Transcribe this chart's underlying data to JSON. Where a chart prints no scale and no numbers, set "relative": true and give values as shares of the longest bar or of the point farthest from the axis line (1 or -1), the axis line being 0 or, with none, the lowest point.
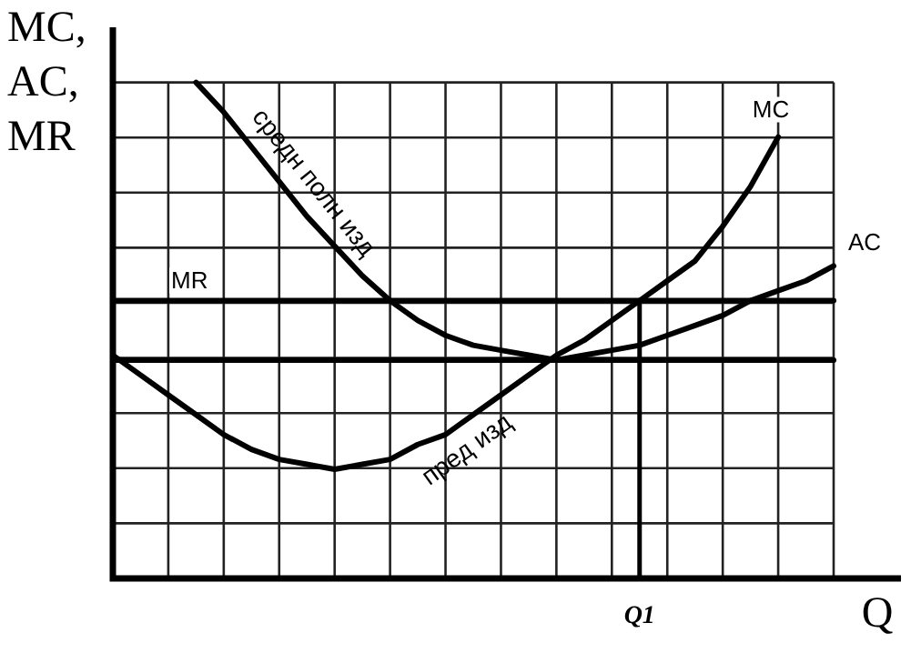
{
  "chart_data": {
    "type": "line",
    "ylabel": "MC, AC, MR",
    "xlabel": "Q",
    "relative": true,
    "grid": true,
    "marker": "none",
    "categories": [
      null,
      null,
      null,
      null,
      null,
      null,
      null,
      null,
      null,
      null,
      null,
      null,
      null,
      null,
      null,
      null,
      null,
      null,
      null,
      null,
      null,
      null,
      null,
      null,
      null,
      null,
      null
    ],
    "series": [
      {
        "name": "MC",
        "color": "#000000",
        "values": [
          0.45,
          0.41,
          0.37,
          0.33,
          0.29,
          0.26,
          0.24,
          0.23,
          0.22,
          0.23,
          0.24,
          0.27,
          0.29,
          0.33,
          0.37,
          0.41,
          0.45,
          0.48,
          0.52,
          0.56,
          0.6,
          0.64,
          0.71,
          0.79,
          0.89,
          null,
          null
        ]
      },
      {
        "name": "AC",
        "color": "#000000",
        "values": [
          null,
          null,
          null,
          1,
          0.94,
          0.87,
          0.8,
          0.73,
          0.67,
          0.61,
          0.56,
          0.52,
          0.49,
          0.47,
          0.46,
          0.45,
          0.44,
          0.45,
          0.46,
          0.47,
          0.49,
          0.51,
          0.53,
          0.56,
          0.58,
          0.6,
          0.63
        ]
      },
      {
        "name": "MR",
        "color": "#000000",
        "values": [
          0.56,
          0.56,
          0.56,
          0.56,
          0.56,
          0.56,
          0.56,
          0.56,
          0.56,
          0.56,
          0.56,
          0.56,
          0.56,
          0.56,
          0.56,
          0.56,
          0.56,
          0.56,
          0.56,
          0.56,
          0.56,
          0.56,
          0.56,
          0.56,
          0.56,
          0.56,
          0.56
        ]
      },
      {
        "color": "#000000",
        "values": [
          0.44,
          0.44,
          0.44,
          0.44,
          0.44,
          0.44,
          0.44,
          0.44,
          0.44,
          0.44,
          0.44,
          0.44,
          0.44,
          0.44,
          0.44,
          0.44,
          0.44,
          0.44,
          0.44,
          0.44,
          0.44,
          0.44,
          0.44,
          0.44,
          0.44,
          0.44,
          0.44
        ]
      }
    ],
    "annotations": [
      {
        "text": "пред изд",
        "y": 0.3
      },
      "средн полн изд",
      {
        "text": "Q1",
        "y": 0.56
      }
    ]
  }
}
